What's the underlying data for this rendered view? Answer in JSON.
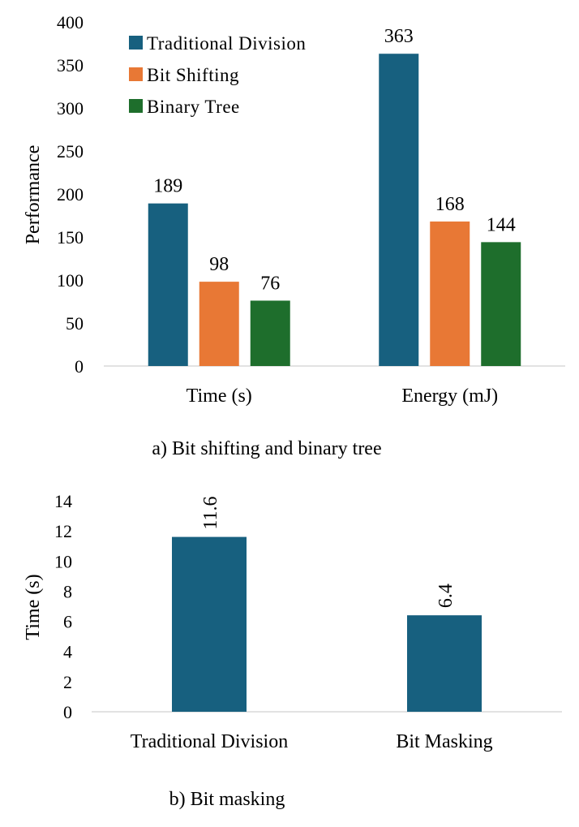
{
  "colors": {
    "traditional_division": "#17607f",
    "bit_shifting": "#e87835",
    "binary_tree": "#1e6e2c",
    "axis": "#d9d9d9"
  },
  "chart_data": [
    {
      "type": "bar",
      "title": "",
      "caption": "a) Bit shifting and binary tree",
      "ylabel": "Performance",
      "xlabel": "",
      "ylim": [
        0,
        400
      ],
      "yticks": [
        0,
        50,
        100,
        150,
        200,
        250,
        300,
        350,
        400
      ],
      "categories": [
        "Time (s)",
        "Energy (mJ)"
      ],
      "legend_position": "top-left",
      "series": [
        {
          "name": "Traditional Division",
          "color_key": "traditional_division",
          "values": [
            189,
            363
          ]
        },
        {
          "name": "Bit Shifting",
          "color_key": "bit_shifting",
          "values": [
            98,
            168
          ]
        },
        {
          "name": "Binary Tree",
          "color_key": "binary_tree",
          "values": [
            76,
            144
          ]
        }
      ]
    },
    {
      "type": "bar",
      "title": "",
      "caption": "b) Bit masking",
      "ylabel": "Time (s)",
      "xlabel": "",
      "ylim": [
        0,
        14
      ],
      "yticks": [
        0,
        2,
        4,
        6,
        8,
        10,
        12,
        14
      ],
      "categories": [
        "Traditional Division",
        "Bit Masking"
      ],
      "values": [
        11.6,
        6.4
      ],
      "labels": [
        "11.6",
        "6.4"
      ],
      "color_key": "traditional_division"
    }
  ]
}
